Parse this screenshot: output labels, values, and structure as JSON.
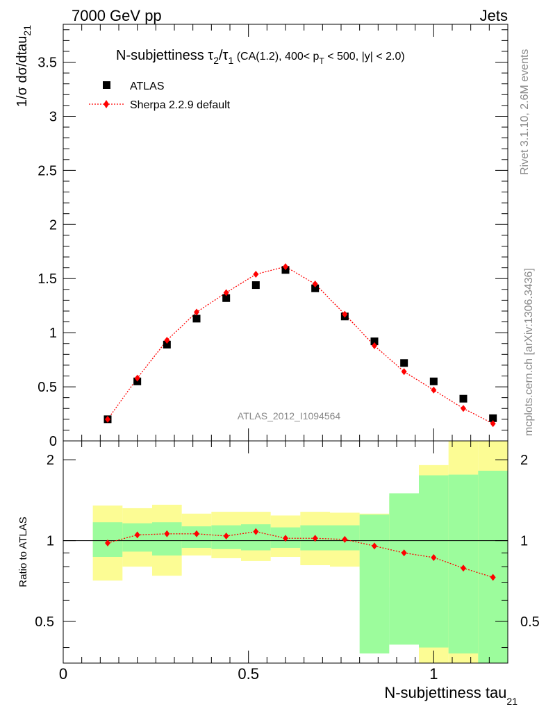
{
  "header": {
    "left": "7000 GeV pp",
    "right": "Jets"
  },
  "title": {
    "prefix": "N-subjettiness ",
    "tau": "τ",
    "sub2": "2",
    "slash": "/",
    "sub1": "1",
    "suffix_a": " (CA(1.2), 400< p",
    "sub_T": "T",
    "suffix_b": " < 500, |y| < 2.0)"
  },
  "side_text": {
    "rivet": "Rivet 3.1.10,  2.6M events",
    "mcplots": "mcplots.cern.ch [arXiv:1306.3436]"
  },
  "analysis_id": "ATLAS_2012_I1094564",
  "ylabel_main": {
    "text": "1/σ dσ/dtau",
    "sub": "21"
  },
  "ylabel_ratio": "Ratio to ATLAS",
  "xlabel": {
    "text": "N-subjettiness tau",
    "sub": "21"
  },
  "colors": {
    "data": "#000000",
    "mc": "#ff0000",
    "band_inner": "#9cfc9c",
    "band_outer": "#fcfc94",
    "side_text": "#888888"
  },
  "chart_data": {
    "type": "scatter",
    "x_bin_edges": [
      0.08,
      0.16,
      0.24,
      0.32,
      0.4,
      0.48,
      0.56,
      0.64,
      0.72,
      0.8,
      0.88,
      0.96,
      1.04,
      1.12,
      1.2
    ],
    "x": [
      0.12,
      0.2,
      0.28,
      0.36,
      0.44,
      0.52,
      0.6,
      0.68,
      0.76,
      0.84,
      0.92,
      1.0,
      1.08,
      1.16
    ],
    "xlim": [
      0,
      1.2
    ],
    "x_ticks": [
      0,
      0.5,
      1
    ],
    "x_tick_labels": [
      "0",
      "0.5",
      "1"
    ],
    "main": {
      "ylim": [
        0,
        3.85
      ],
      "y_ticks": [
        0.5,
        1,
        1.5,
        2,
        2.5,
        3,
        3.5
      ],
      "y_tick_labels": [
        "0.5",
        "1",
        "1.5",
        "2",
        "2.5",
        "3",
        "3.5"
      ],
      "bottom_tick_label": "0",
      "series": [
        {
          "name": "ATLAS",
          "style": "square-marker",
          "values": [
            0.2,
            0.55,
            0.89,
            1.13,
            1.32,
            1.44,
            1.58,
            1.41,
            1.15,
            0.92,
            0.72,
            0.55,
            0.39,
            0.21
          ]
        },
        {
          "name": "Sherpa 2.2.9 default",
          "style": "diamond-dotted-line",
          "values": [
            0.2,
            0.58,
            0.93,
            1.19,
            1.37,
            1.54,
            1.61,
            1.45,
            1.17,
            0.88,
            0.64,
            0.47,
            0.3,
            0.16
          ]
        }
      ],
      "legend_position": "top-left"
    },
    "ratio": {
      "ylim": [
        0.35,
        2.35
      ],
      "y_scale": "log",
      "y_ticks": [
        0.5,
        1,
        2
      ],
      "y_tick_labels": [
        "0.5",
        "1",
        "2"
      ],
      "mc_ratio": [
        0.98,
        1.05,
        1.06,
        1.06,
        1.04,
        1.08,
        1.02,
        1.02,
        1.01,
        0.955,
        0.9,
        0.865,
        0.79,
        0.73
      ],
      "band_inner_low": [
        0.87,
        0.91,
        0.88,
        0.94,
        0.93,
        0.92,
        0.94,
        0.92,
        0.92,
        0.38,
        0.41,
        0.4,
        0.38,
        0.35
      ],
      "band_inner_high": [
        1.17,
        1.16,
        1.17,
        1.13,
        1.14,
        1.15,
        1.12,
        1.14,
        1.14,
        1.25,
        1.5,
        1.75,
        1.76,
        1.82
      ],
      "band_outer_low": [
        0.71,
        0.8,
        0.74,
        0.88,
        0.86,
        0.84,
        0.87,
        0.81,
        0.8,
        0.78,
        0.67,
        0.35,
        0.35,
        0.35
      ],
      "band_outer_high": [
        1.35,
        1.32,
        1.36,
        1.26,
        1.28,
        1.28,
        1.24,
        1.28,
        1.27,
        1.26,
        1.46,
        1.91,
        2.35,
        2.35
      ]
    }
  }
}
